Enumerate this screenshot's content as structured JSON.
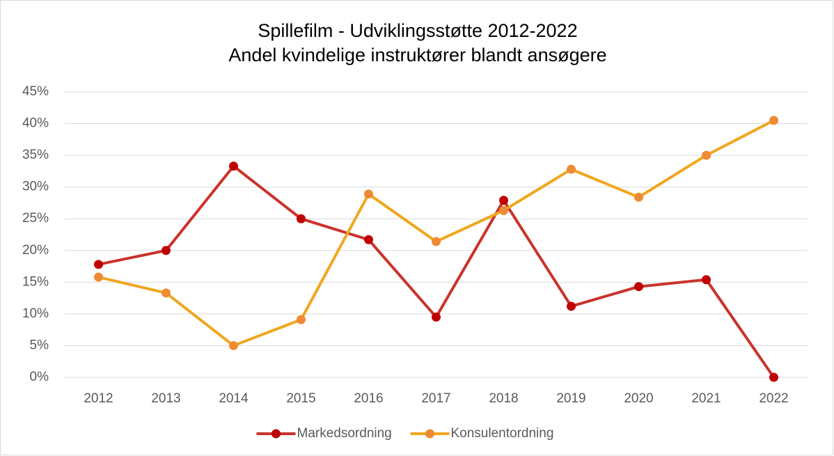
{
  "chart_data": {
    "type": "line",
    "title": "Spillefilm - Udviklingsstøtte 2012-2022",
    "subtitle": "Andel kvindelige instruktører blandt ansøgere",
    "categories": [
      "2012",
      "2013",
      "2014",
      "2015",
      "2016",
      "2017",
      "2018",
      "2019",
      "2020",
      "2021",
      "2022"
    ],
    "series": [
      {
        "name": "Markedsordning",
        "color": "#c9332a",
        "marker_color": "#c00000",
        "values": [
          17.8,
          20.0,
          33.3,
          25.0,
          21.7,
          9.5,
          27.9,
          11.2,
          14.3,
          15.4,
          0
        ]
      },
      {
        "name": "Konsulentordning",
        "color": "#efa71e",
        "marker_color": "#ef8a34",
        "values": [
          15.8,
          13.3,
          5.0,
          9.1,
          28.9,
          21.4,
          26.3,
          32.8,
          28.4,
          35.0,
          40.5
        ]
      }
    ],
    "ylim": [
      0,
      45
    ],
    "yticks": [
      {
        "value": 0,
        "label": "0%"
      },
      {
        "value": 5,
        "label": "5%"
      },
      {
        "value": 10,
        "label": "10%"
      },
      {
        "value": 15,
        "label": "15%"
      },
      {
        "value": 20,
        "label": "20%"
      },
      {
        "value": 25,
        "label": "25%"
      },
      {
        "value": 30,
        "label": "30%"
      },
      {
        "value": 35,
        "label": "35%"
      },
      {
        "value": 40,
        "label": "40%"
      },
      {
        "value": 45,
        "label": "45%"
      }
    ],
    "grid": true,
    "legend": "bottom"
  }
}
